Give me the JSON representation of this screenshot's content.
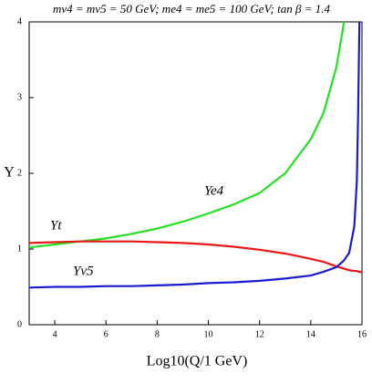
{
  "chart_data": {
    "type": "line",
    "title": "mν4 = mν5 = 50 GeV; me4 = me5 = 100 GeV; tan β = 1.4",
    "x_label": "Log10(Q/1 GeV)",
    "y_label": "Y",
    "x": [
      3,
      4,
      5,
      6,
      7,
      8,
      9,
      10,
      11,
      12,
      13,
      14,
      14.5,
      15,
      15.3,
      15.5,
      15.7,
      15.8,
      15.85,
      15.9,
      16
    ],
    "series": [
      {
        "name": "Ye4",
        "color": "#22e022",
        "values": [
          1.02,
          1.06,
          1.1,
          1.14,
          1.2,
          1.27,
          1.36,
          1.47,
          1.59,
          1.74,
          2.0,
          2.45,
          2.8,
          3.4,
          4.0,
          null,
          null,
          null,
          null,
          null,
          null
        ]
      },
      {
        "name": "Yt",
        "color": "#e81818",
        "values": [
          1.08,
          1.09,
          1.1,
          1.1,
          1.1,
          1.09,
          1.08,
          1.06,
          1.03,
          0.99,
          0.94,
          0.87,
          0.83,
          0.77,
          0.74,
          0.72,
          0.71,
          0.71,
          0.7,
          0.7,
          0.69
        ]
      },
      {
        "name": "Yν5",
        "color": "#1a1ad0",
        "values": [
          0.49,
          0.5,
          0.5,
          0.51,
          0.51,
          0.52,
          0.53,
          0.55,
          0.56,
          0.58,
          0.61,
          0.65,
          0.7,
          0.76,
          0.85,
          0.95,
          1.3,
          1.9,
          2.8,
          4.0,
          null
        ]
      }
    ],
    "xlim": [
      3,
      16
    ],
    "ylim": [
      0,
      4
    ],
    "xticks": [
      4,
      6,
      8,
      10,
      12,
      14,
      16
    ],
    "yticks": [
      0,
      1,
      2,
      3,
      4
    ]
  }
}
